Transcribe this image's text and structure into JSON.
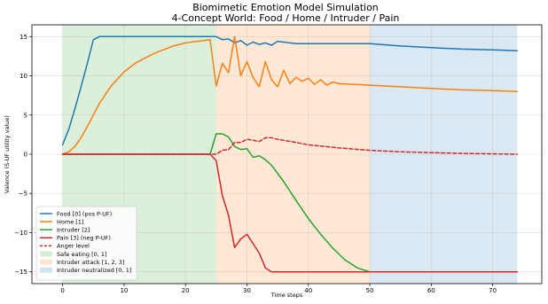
{
  "chart_data": {
    "type": "line",
    "title": "Biomimetic Emotion Model Simulation",
    "subtitle": "4-Concept World: Food / Home / Intruder / Pain",
    "xlabel": "Time steps",
    "ylabel": "Valence (S-UF utility value)",
    "xlim": [
      -5,
      78
    ],
    "ylim": [
      -16.5,
      16.5
    ],
    "xticks": [
      0,
      10,
      20,
      30,
      40,
      50,
      60,
      70
    ],
    "yticks": [
      -15,
      -10,
      -5,
      0,
      5,
      10,
      15
    ],
    "grid": true,
    "legend_position": "lower-left",
    "phases": [
      {
        "name": "Safe eating [0, 1]",
        "start": 0,
        "end": 25,
        "color": "#2ca02c"
      },
      {
        "name": "Intruder attack [1, 2, 3]",
        "start": 25,
        "end": 50,
        "color": "#ff7f0e"
      },
      {
        "name": "Intruder neutralized [0, 1]",
        "start": 50,
        "end": 74,
        "color": "#1f77b4"
      }
    ],
    "series": [
      {
        "name": "Food [0] (pos P-UF)",
        "color": "#1f77b4",
        "dash": "solid",
        "x": [
          0,
          1,
          2,
          3,
          4,
          5,
          6,
          8,
          10,
          15,
          20,
          25,
          26,
          27,
          28,
          29,
          30,
          31,
          32,
          33,
          34,
          35,
          36,
          38,
          40,
          45,
          50,
          55,
          60,
          65,
          70,
          74
        ],
        "y": [
          1.2,
          3.2,
          5.8,
          8.6,
          11.5,
          14.6,
          15.0,
          15.0,
          15.0,
          15.0,
          15.0,
          15.0,
          14.6,
          14.7,
          14.2,
          14.5,
          13.9,
          14.3,
          14.0,
          14.2,
          13.9,
          14.4,
          14.3,
          14.1,
          14.1,
          14.1,
          14.1,
          13.8,
          13.6,
          13.4,
          13.3,
          13.2
        ]
      },
      {
        "name": "Home [1]",
        "color": "#ff7f0e",
        "dash": "solid",
        "x": [
          0,
          1,
          2,
          3,
          4,
          5,
          6,
          8,
          10,
          12,
          15,
          18,
          20,
          22,
          24,
          25,
          26,
          27,
          28,
          29,
          30,
          31,
          32,
          33,
          34,
          35,
          36,
          37,
          38,
          39,
          40,
          41,
          42,
          43,
          44,
          45,
          50,
          55,
          60,
          65,
          70,
          74
        ],
        "y": [
          0,
          0.3,
          1.0,
          2.1,
          3.5,
          5.0,
          6.5,
          8.8,
          10.5,
          11.7,
          12.9,
          13.8,
          14.2,
          14.4,
          14.6,
          8.7,
          11.6,
          10.4,
          15.0,
          10.0,
          11.8,
          9.8,
          8.6,
          11.8,
          9.5,
          8.6,
          10.7,
          9.0,
          9.8,
          9.3,
          9.7,
          8.9,
          9.5,
          8.8,
          9.2,
          9.0,
          8.8,
          8.6,
          8.4,
          8.2,
          8.1,
          8.0
        ]
      },
      {
        "name": "Intruder [2]",
        "color": "#2ca02c",
        "dash": "solid",
        "x": [
          0,
          5,
          10,
          15,
          20,
          24,
          25,
          26,
          27,
          28,
          29,
          30,
          31,
          32,
          33,
          34,
          36,
          38,
          40,
          42,
          44,
          46,
          48,
          50,
          55,
          60,
          65,
          70,
          74
        ],
        "y": [
          0,
          0,
          0,
          0,
          0,
          0,
          2.6,
          2.6,
          2.2,
          1.0,
          0.6,
          0.7,
          -0.4,
          -0.2,
          -0.7,
          -1.4,
          -3.5,
          -5.9,
          -8.2,
          -10.2,
          -12.0,
          -13.5,
          -14.5,
          -15.0,
          -15.0,
          -15.0,
          -15.0,
          -15.0,
          -15.0
        ]
      },
      {
        "name": "Pain [3] (neg P-UF)",
        "color": "#d62728",
        "dash": "solid",
        "x": [
          0,
          5,
          10,
          15,
          20,
          24,
          25,
          26,
          27,
          28,
          29,
          30,
          31,
          32,
          33,
          34,
          35,
          40,
          45,
          50,
          55,
          60,
          65,
          70,
          74
        ],
        "y": [
          0,
          0,
          0,
          0,
          0,
          0,
          -0.8,
          -5.3,
          -7.8,
          -11.9,
          -10.8,
          -10.2,
          -11.4,
          -12.6,
          -14.5,
          -15.0,
          -15.0,
          -15.0,
          -15.0,
          -15.0,
          -15.0,
          -15.0,
          -15.0,
          -15.0,
          -15.0
        ]
      },
      {
        "name": "Anger level",
        "color": "#d62728",
        "dash": "dashed",
        "x": [
          0,
          5,
          10,
          15,
          20,
          24,
          25,
          26,
          27,
          28,
          29,
          30,
          31,
          32,
          33,
          34,
          35,
          38,
          40,
          45,
          50,
          55,
          60,
          65,
          70,
          74
        ],
        "y": [
          0,
          0,
          0,
          0,
          0,
          0,
          0,
          0.5,
          0.6,
          1.5,
          1.5,
          1.9,
          1.8,
          1.6,
          2.1,
          2.1,
          1.9,
          1.5,
          1.2,
          0.8,
          0.5,
          0.3,
          0.2,
          0.1,
          0.05,
          0
        ]
      }
    ]
  }
}
